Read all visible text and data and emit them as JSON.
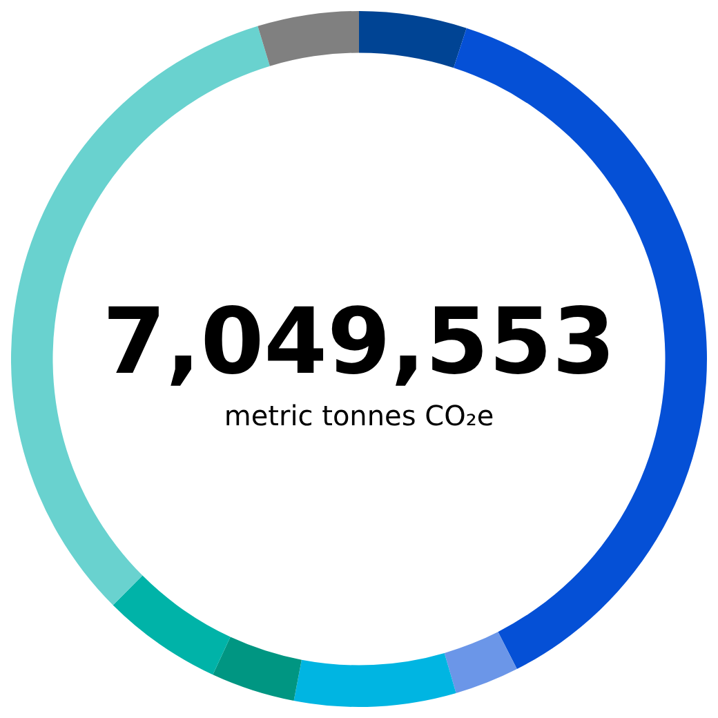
{
  "chart_data": {
    "type": "donut",
    "title": "7,049,553",
    "subtitle": "metric tonnes CO₂e",
    "categories": [
      null,
      null,
      null,
      null,
      null,
      null,
      null,
      null
    ],
    "values": [
      5,
      37.5,
      3,
      7.5,
      3.9,
      5.6,
      32.8,
      4.7
    ],
    "colors": [
      "#004494",
      "#0550d6",
      "#6b96e8",
      "#00b5e2",
      "#009682",
      "#00b3a8",
      "#69d2cf",
      "#808080"
    ]
  }
}
